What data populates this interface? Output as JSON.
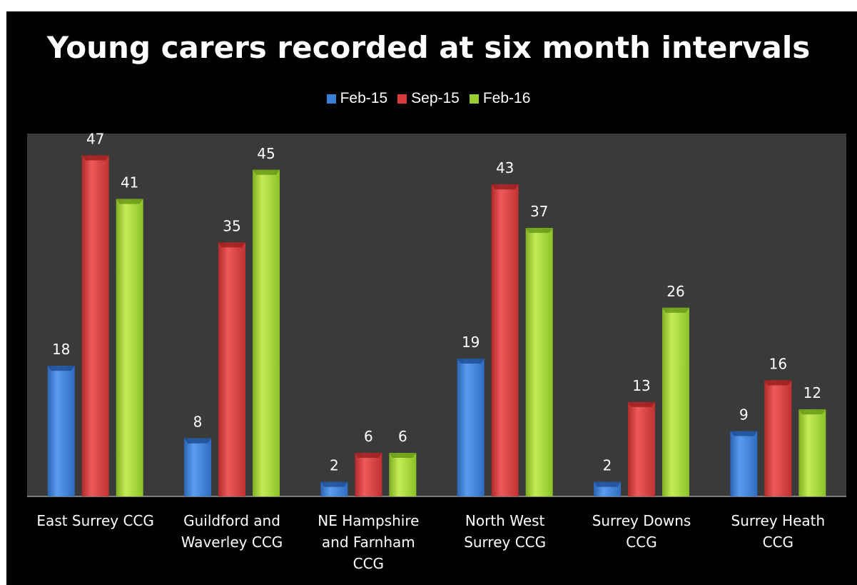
{
  "chart_data": {
    "type": "bar",
    "title": "Young carers recorded at six month intervals",
    "categories": [
      [
        "East Surrey CCG"
      ],
      [
        "Guildford and",
        "Waverley CCG"
      ],
      [
        "NE Hampshire",
        "and Farnham",
        "CCG"
      ],
      [
        "North West",
        "Surrey CCG"
      ],
      [
        "Surrey Downs",
        "CCG"
      ],
      [
        "Surrey Heath",
        "CCG"
      ]
    ],
    "series": [
      {
        "name": "Feb-15",
        "color": "#3a7fd5",
        "values": [
          18,
          8,
          2,
          19,
          2,
          9
        ]
      },
      {
        "name": "Sep-15",
        "color": "#d63a3a",
        "values": [
          47,
          35,
          6,
          43,
          13,
          16
        ]
      },
      {
        "name": "Feb-16",
        "color": "#9acd32",
        "values": [
          41,
          45,
          6,
          37,
          26,
          12
        ]
      }
    ],
    "ylim": [
      0,
      50
    ],
    "legend_position": "top",
    "grid": false,
    "data_labels": true,
    "background": "#000000",
    "plot_background": "#3a3a3a"
  }
}
